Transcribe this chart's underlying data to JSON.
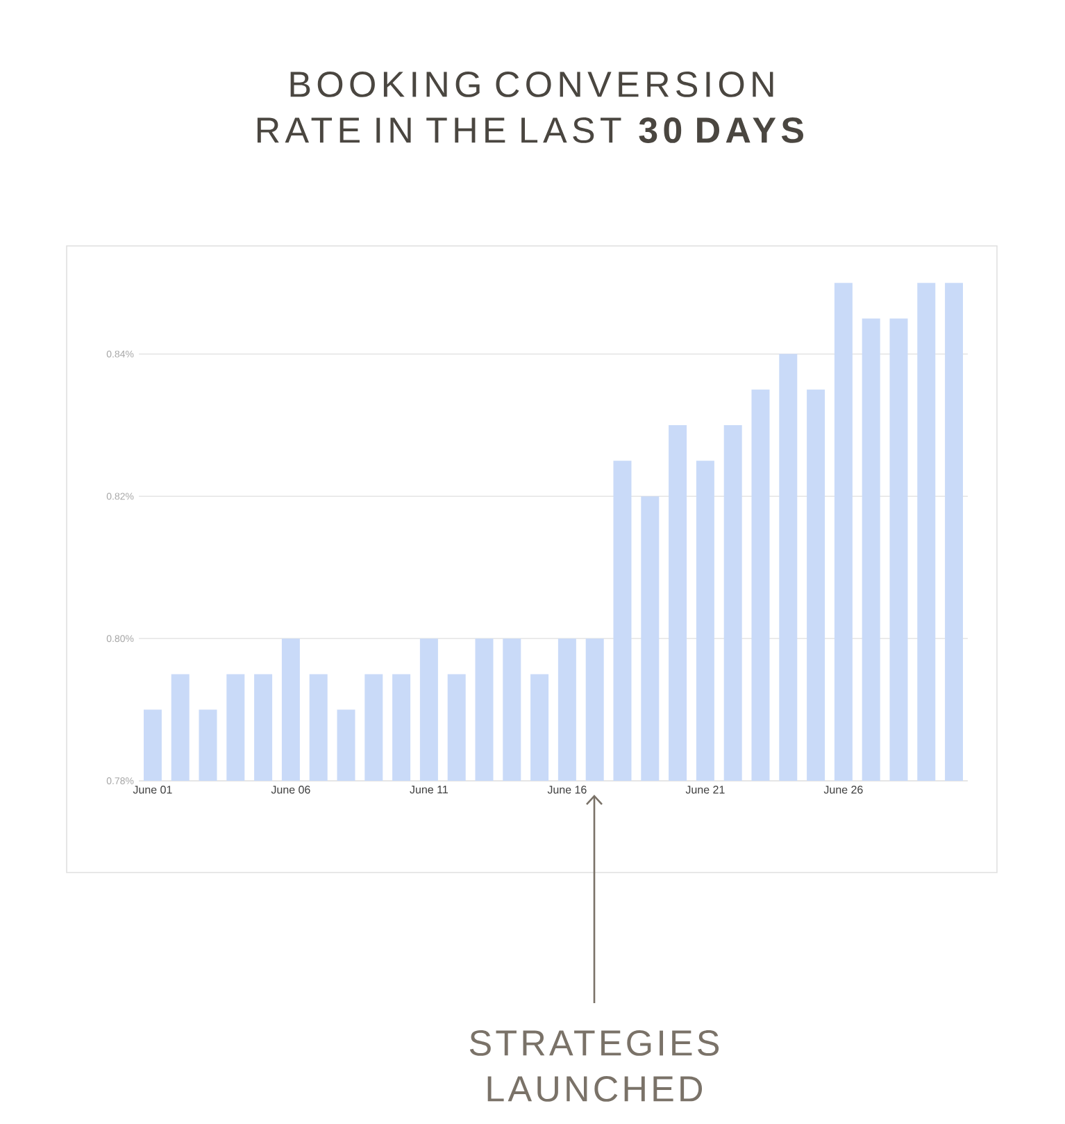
{
  "chart_data": {
    "type": "bar",
    "title": "BOOKING CONVERSION RATE IN THE LAST **30 DAYS**",
    "categories": [
      "June 01",
      null,
      null,
      null,
      null,
      "June 06",
      null,
      null,
      null,
      null,
      "June 11",
      null,
      null,
      null,
      null,
      "June 16",
      null,
      null,
      null,
      null,
      "June 21",
      null,
      null,
      null,
      null,
      "June 26",
      null,
      null,
      null,
      null
    ],
    "values": [
      0.79,
      0.795,
      0.79,
      0.795,
      0.795,
      0.8,
      0.795,
      0.79,
      0.795,
      0.795,
      0.8,
      0.795,
      0.8,
      0.8,
      0.795,
      0.8,
      0.8,
      0.825,
      0.82,
      0.83,
      0.825,
      0.83,
      0.835,
      0.84,
      0.835,
      0.85,
      0.845,
      0.845,
      0.85,
      0.85
    ],
    "color": "#c9daf8",
    "ylim": [
      0.78,
      0.855
    ],
    "yticks": [
      {
        "value": 0.78,
        "label": "0.78%"
      },
      {
        "value": 0.8,
        "label": "0.80%"
      },
      {
        "value": 0.82,
        "label": "0.82%"
      },
      {
        "value": 0.84,
        "label": "0.84%"
      }
    ],
    "grid": "y",
    "annotations": [
      "STRATEGIES LAUNCHED"
    ]
  }
}
